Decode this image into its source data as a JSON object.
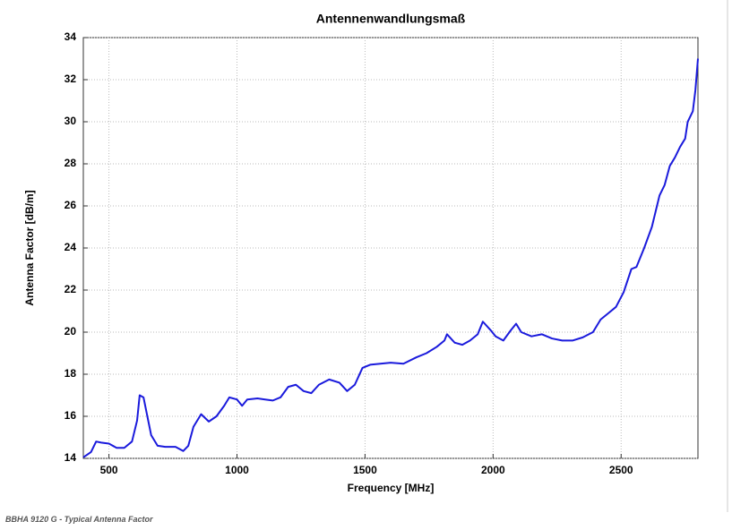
{
  "chart_data": {
    "type": "line",
    "title": "Antennenwandlungsmaß",
    "xlabel": "Frequency [MHz]",
    "ylabel": "Antenna Factor [dB/m]",
    "xlim": [
      400,
      2800
    ],
    "ylim": [
      14,
      34
    ],
    "xticks": [
      500,
      1000,
      1500,
      2000,
      2500
    ],
    "yticks": [
      14,
      16,
      18,
      20,
      22,
      24,
      26,
      28,
      30,
      32,
      34
    ],
    "grid": true,
    "series": [
      {
        "name": "Antenna Factor",
        "color": "#1a1adc",
        "x": [
          400,
          430,
          450,
          470,
          500,
          530,
          560,
          590,
          610,
          620,
          635,
          650,
          665,
          690,
          720,
          760,
          790,
          810,
          830,
          860,
          890,
          920,
          950,
          970,
          1000,
          1020,
          1040,
          1080,
          1110,
          1140,
          1170,
          1200,
          1230,
          1260,
          1290,
          1320,
          1360,
          1400,
          1430,
          1460,
          1490,
          1520,
          1560,
          1600,
          1650,
          1700,
          1740,
          1780,
          1810,
          1820,
          1850,
          1880,
          1910,
          1940,
          1960,
          1990,
          2010,
          2040,
          2070,
          2090,
          2110,
          2150,
          2190,
          2230,
          2270,
          2310,
          2350,
          2390,
          2420,
          2450,
          2480,
          2510,
          2540,
          2560,
          2590,
          2620,
          2650,
          2670,
          2690,
          2710,
          2730,
          2750,
          2760,
          2780,
          2790,
          2800
        ],
        "values": [
          14.05,
          14.3,
          14.8,
          14.75,
          14.7,
          14.5,
          14.5,
          14.8,
          15.8,
          17.0,
          16.9,
          16.0,
          15.1,
          14.6,
          14.55,
          14.55,
          14.35,
          14.6,
          15.5,
          16.1,
          15.75,
          16.0,
          16.5,
          16.9,
          16.8,
          16.5,
          16.8,
          16.85,
          16.8,
          16.75,
          16.9,
          17.4,
          17.5,
          17.2,
          17.1,
          17.5,
          17.75,
          17.6,
          17.2,
          17.5,
          18.3,
          18.45,
          18.5,
          18.55,
          18.5,
          18.8,
          19.0,
          19.3,
          19.6,
          19.9,
          19.5,
          19.4,
          19.6,
          19.9,
          20.5,
          20.1,
          19.8,
          19.6,
          20.1,
          20.4,
          20.0,
          19.8,
          19.9,
          19.7,
          19.6,
          19.6,
          19.75,
          20.0,
          20.6,
          20.9,
          21.2,
          21.9,
          23.0,
          23.1,
          24.0,
          25.0,
          26.5,
          27.0,
          27.9,
          28.3,
          28.8,
          29.2,
          30.0,
          30.5,
          31.5,
          33.0
        ]
      }
    ]
  },
  "caption": "BBHA 9120 G - Typical Antenna Factor"
}
